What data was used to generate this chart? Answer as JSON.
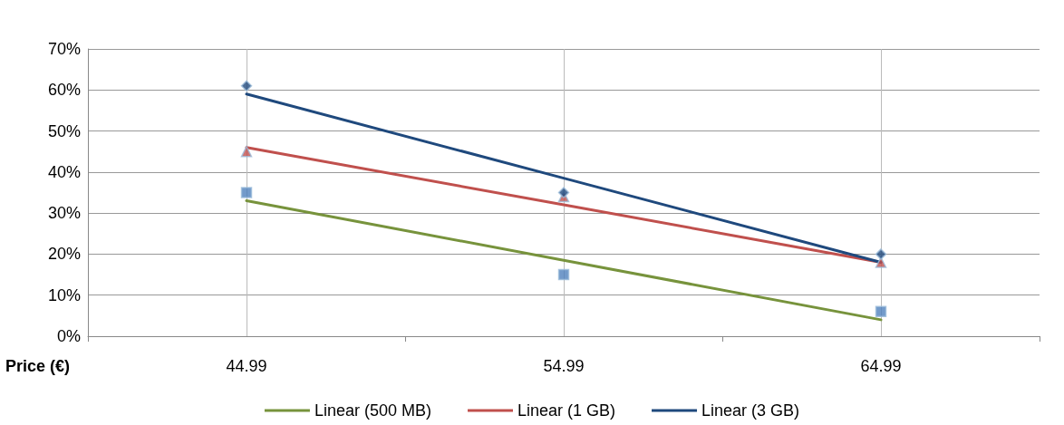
{
  "chart_data": {
    "type": "scatter",
    "xlabel": "Price (€)",
    "categories": [
      "44.99",
      "54.99",
      "64.99"
    ],
    "ylim": [
      0,
      70
    ],
    "yticks": [
      {
        "value": 0,
        "label": "0%"
      },
      {
        "value": 10,
        "label": "10%"
      },
      {
        "value": 20,
        "label": "20%"
      },
      {
        "value": 30,
        "label": "30%"
      },
      {
        "value": 40,
        "label": "40%"
      },
      {
        "value": 50,
        "label": "50%"
      },
      {
        "value": 60,
        "label": "60%"
      },
      {
        "value": 70,
        "label": "70%"
      }
    ],
    "grid": true,
    "legend": "bottom",
    "series": [
      {
        "marker": "square",
        "color": "#4f81bd",
        "values": [
          35,
          15,
          6
        ]
      },
      {
        "marker": "triangle",
        "color": "#c0504d",
        "values": [
          45,
          34,
          18
        ]
      },
      {
        "marker": "diamond",
        "color": "#1f497d",
        "values": [
          61,
          35,
          20
        ]
      },
      {
        "type": "line",
        "marker": "none",
        "name": "Linear (500 MB)",
        "color": "#77933c",
        "values": [
          33,
          18.5,
          4
        ]
      },
      {
        "type": "line",
        "marker": "none",
        "name": "Linear (1 GB)",
        "color": "#c0504d",
        "values": [
          46,
          32,
          18
        ]
      },
      {
        "type": "line",
        "marker": "none",
        "name": "Linear (3 GB)",
        "color": "#1f497d",
        "values": [
          59,
          38.5,
          18
        ]
      }
    ]
  }
}
